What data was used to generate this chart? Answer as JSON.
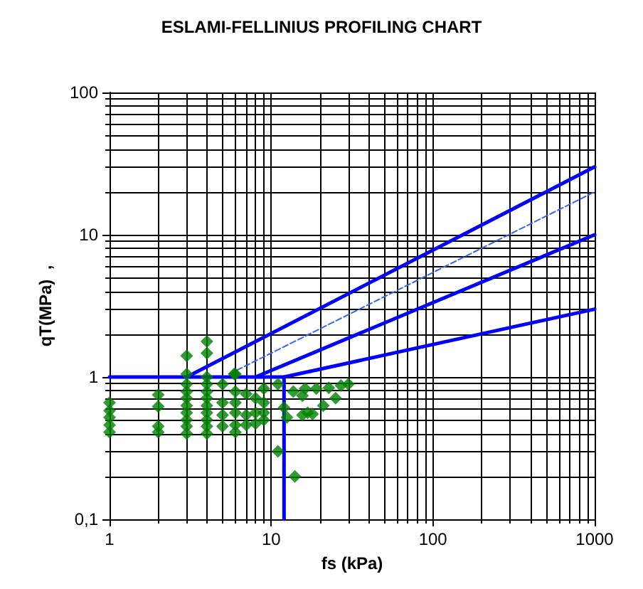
{
  "chart_data": {
    "type": "scatter",
    "title": "ESLAMI-FELLINIUS PROFILING CHART",
    "xlabel": "fs (kPa)",
    "ylabel": "qT(MPa)  ,",
    "log": "xy",
    "xlim": [
      1,
      1000
    ],
    "ylim": [
      0.1,
      100
    ],
    "xticks": [
      1,
      10,
      100,
      1000
    ],
    "yticks": [
      {
        "value": 0.1,
        "label": "0,1"
      },
      1,
      10,
      100
    ],
    "grid": true,
    "series": [
      {
        "type": "line",
        "color": "#0000ff",
        "x": [
          1,
          12,
          1000
        ],
        "values": [
          1,
          1,
          3
        ],
        "marker": "none",
        "line_style": "solid"
      },
      {
        "type": "line",
        "color": "#0000ff",
        "x": [
          12,
          12
        ],
        "values": [
          0.1,
          1
        ],
        "marker": "none",
        "line_style": "solid"
      },
      {
        "type": "line",
        "color": "#0000ff",
        "x": [
          3,
          1000
        ],
        "values": [
          1,
          30
        ],
        "marker": "none",
        "line_style": "solid"
      },
      {
        "type": "line",
        "color": "#0000ff",
        "x": [
          8,
          1000
        ],
        "values": [
          1,
          10
        ],
        "marker": "none",
        "line_style": "solid"
      },
      {
        "type": "line",
        "color": "#3366ff",
        "x": [
          5.5,
          1000
        ],
        "values": [
          1.05,
          20
        ],
        "marker": "none",
        "line_style": "dashed"
      },
      {
        "color": "#008000",
        "marker": "diamond",
        "x": [
          1,
          1,
          1,
          1,
          1,
          2,
          2,
          2,
          2,
          3,
          3,
          3,
          3,
          3,
          3,
          3,
          3,
          3,
          3,
          4,
          4,
          4,
          4,
          4,
          4,
          4,
          4,
          4,
          4,
          4,
          5,
          5,
          5,
          5,
          6,
          6,
          6,
          6,
          6,
          6,
          7,
          7,
          7,
          8,
          8,
          8,
          9,
          9,
          9,
          9,
          11,
          11,
          14,
          12.5,
          5.9,
          13.7,
          16.2,
          19,
          22.7,
          27,
          30,
          15.6,
          18,
          21,
          25,
          12,
          15.6,
          16.8
        ],
        "values": [
          0.66,
          0.58,
          0.52,
          0.46,
          0.41,
          0.75,
          0.62,
          0.45,
          0.41,
          1.41,
          1.05,
          0.89,
          0.79,
          0.71,
          0.63,
          0.56,
          0.5,
          0.45,
          0.4,
          1.78,
          1.47,
          1.0,
          0.89,
          0.79,
          0.71,
          0.63,
          0.56,
          0.5,
          0.45,
          0.4,
          0.89,
          0.66,
          0.54,
          0.45,
          1.05,
          0.79,
          0.66,
          0.56,
          0.46,
          0.41,
          0.76,
          0.54,
          0.46,
          0.71,
          0.56,
          0.47,
          0.83,
          0.66,
          0.56,
          0.5,
          0.89,
          0.3,
          0.2,
          0.52,
          1.05,
          0.79,
          0.83,
          0.83,
          0.84,
          0.87,
          0.89,
          0.54,
          0.55,
          0.63,
          0.71,
          0.61,
          0.74,
          0.56
        ]
      }
    ]
  }
}
